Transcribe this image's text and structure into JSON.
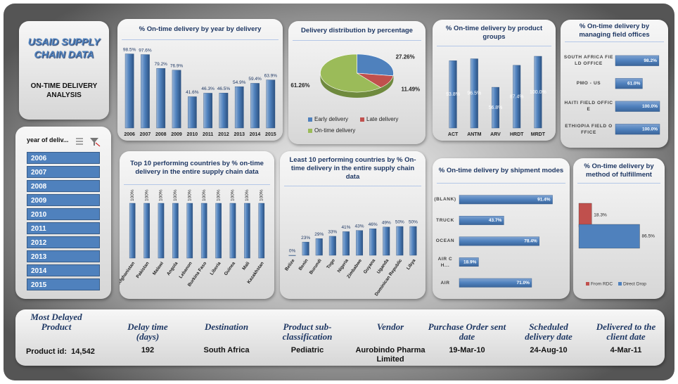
{
  "header": {
    "title": "USAID SUPPLY CHAIN DATA",
    "subtitle": "ON-TIME DELIVERY ANALYSIS"
  },
  "slicer": {
    "title": "year of deliv...",
    "items": [
      "2006",
      "2007",
      "2008",
      "2009",
      "2010",
      "2011",
      "2012",
      "2013",
      "2014",
      "2015"
    ]
  },
  "chart_data": [
    {
      "type": "bar",
      "title": "% On-time delivery by year by delivery",
      "categories": [
        "2006",
        "2007",
        "2008",
        "2009",
        "2010",
        "2011",
        "2012",
        "2013",
        "2014",
        "2015"
      ],
      "values": [
        98.5,
        97.6,
        79.2,
        76.9,
        41.6,
        46.3,
        46.5,
        54.9,
        59.4,
        63.9
      ],
      "value_labels": [
        "98.5%",
        "97.6%",
        "79.2%",
        "76.9%",
        "41.6%",
        "46.3%",
        "46.5%",
        "54.9%",
        "59.4%",
        "63.9%"
      ],
      "ylim": [
        0,
        100
      ],
      "color": "#4f81bd"
    },
    {
      "type": "pie",
      "title": "Delivery distribution by percentage",
      "categories": [
        "Early delivery",
        "Late delivery",
        "On-time delivery"
      ],
      "values": [
        27.26,
        11.49,
        61.26
      ],
      "value_labels": [
        "27.26%",
        "11.49%",
        "61.26%"
      ],
      "colors": [
        "#4f81bd",
        "#c0504d",
        "#9bbb59"
      ]
    },
    {
      "type": "bar",
      "title": "% On-time delivery by product groups",
      "categories": [
        "ACT",
        "ANTM",
        "ARV",
        "HRDT",
        "MRDT"
      ],
      "values": [
        93.8,
        96.5,
        56.8,
        87.4,
        100.0
      ],
      "value_labels": [
        "93.8%",
        "96.5%",
        "56.8%",
        "87.4%",
        "100.0%"
      ],
      "ylim": [
        0,
        100
      ],
      "color": "#4f81bd"
    },
    {
      "type": "bar",
      "orientation": "horizontal",
      "title": "% On-time delivery by managing field offices",
      "categories": [
        "SOUTH AFRICA FIELD OFFICE",
        "PMO - US",
        "HAITI FIELD OFFICE",
        "ETHIOPIA FIELD OFFICE"
      ],
      "values": [
        98.2,
        61.0,
        100.0,
        100.0
      ],
      "value_labels": [
        "98.2%",
        "61.0%",
        "100.0%",
        "100.0%"
      ],
      "xlim": [
        0,
        100
      ],
      "color": "#4f81bd"
    },
    {
      "type": "bar",
      "title": "Top 10 performing countries by % on-time delivery in the entire supply chain data",
      "categories": [
        "Afghanistan",
        "Pakistan",
        "Malawi",
        "Angola",
        "Lebanon",
        "Burkina Faso",
        "Liberia",
        "Guinea",
        "Mali",
        "Kazakhstan"
      ],
      "values": [
        100,
        100,
        100,
        100,
        100,
        100,
        100,
        100,
        100,
        100
      ],
      "value_labels": [
        "100%",
        "100%",
        "100%",
        "100%",
        "100%",
        "100%",
        "100%",
        "100%",
        "100%",
        "100%"
      ],
      "ylim": [
        0,
        100
      ],
      "color": "#4f81bd"
    },
    {
      "type": "bar",
      "title": "Least 10 performing countries by % On-time delivery in the entire supply chain data",
      "categories": [
        "Belize",
        "Benin",
        "Burundi",
        "Togo",
        "Nigeria",
        "Zimbabwe",
        "Guyana",
        "Uganda",
        "Dominican Republic",
        "Libya"
      ],
      "values": [
        0,
        23,
        29,
        33,
        41,
        43,
        46,
        49,
        50,
        50
      ],
      "value_labels": [
        "0%",
        "23%",
        "29%",
        "33%",
        "41%",
        "43%",
        "46%",
        "49%",
        "50%",
        "50%"
      ],
      "ylim": [
        0,
        100
      ],
      "color": "#4f81bd"
    },
    {
      "type": "bar",
      "orientation": "horizontal",
      "title": "% On-time delivery by shipment modes",
      "categories": [
        "(BLANK)",
        "TRUCK",
        "OCEAN",
        "AIR CH...",
        "AIR"
      ],
      "values": [
        91.4,
        43.7,
        78.4,
        18.9,
        71.0
      ],
      "value_labels": [
        "91.4%",
        "43.7%",
        "78.4%",
        "18.9%",
        "71.0%"
      ],
      "xlim": [
        0,
        100
      ],
      "color": "#4f81bd"
    },
    {
      "type": "bar",
      "orientation": "horizontal",
      "title": "% On-time delivery by method of fulfillment",
      "series": [
        {
          "name": "From RDC",
          "color": "#c0504d",
          "values": [
            18.3
          ],
          "value_labels": [
            "18.3%"
          ]
        },
        {
          "name": "Direct Drop",
          "color": "#4f81bd",
          "values": [
            86.5
          ],
          "value_labels": [
            "86.5%"
          ]
        }
      ],
      "xlim": [
        0,
        100
      ]
    }
  ],
  "delayed_product": {
    "title": "Most Delayed Product",
    "id_label": "Product id:",
    "id": "14,542",
    "columns": [
      {
        "header": "Delay time (days)",
        "value": "192"
      },
      {
        "header": "Destination",
        "value": "South Africa"
      },
      {
        "header": "Product sub-classification",
        "value": "Pediatric"
      },
      {
        "header": "Vendor",
        "value": "Aurobindo Pharma Limited"
      },
      {
        "header": "Purchase Order sent date",
        "value": "19-Mar-10"
      },
      {
        "header": "Scheduled delivery date",
        "value": "24-Aug-10"
      },
      {
        "header": "Delivered to the client date",
        "value": "4-Mar-11"
      }
    ]
  }
}
